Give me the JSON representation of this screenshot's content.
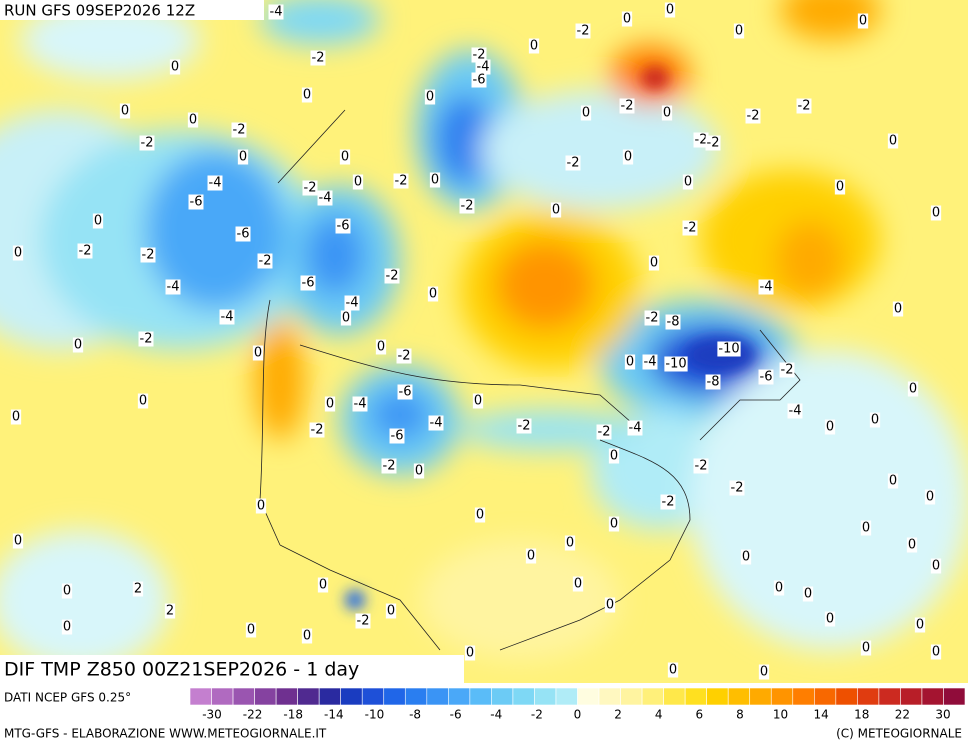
{
  "run_label": "RUN GFS 09SEP2026 12Z",
  "field_label": "DIF TMP Z850 00Z21SEP2026 - 1 day",
  "source_label": "DATI NCEP GFS 0.25°",
  "credit_left": "MTG-GFS - ELABORAZIONE WWW.METEOGIORNALE.IT",
  "credit_right": "(C) METEOGIORNALE",
  "colorbar": {
    "colors": [
      "#c47fcf",
      "#b06ac0",
      "#9a55b0",
      "#8542a0",
      "#6f3090",
      "#502a90",
      "#2a2aa0",
      "#1a3cc0",
      "#1e50d8",
      "#2066e8",
      "#2a7ef0",
      "#3a94f5",
      "#4aa8f8",
      "#5abcf8",
      "#6ccbf5",
      "#7ed8f5",
      "#96e3f5",
      "#b0ecf7",
      "#fffde0",
      "#fff8c0",
      "#fff4a0",
      "#fff07a",
      "#ffe84a",
      "#ffe020",
      "#ffd000",
      "#ffbe00",
      "#ffaa00",
      "#ff9400",
      "#ff7e00",
      "#f86800",
      "#ee5000",
      "#e03c10",
      "#cc2a20",
      "#b81e28",
      "#a41430",
      "#900c3a"
    ],
    "ticks": [
      -30,
      -22,
      -18,
      -14,
      -10,
      -8,
      -6,
      -4,
      -2,
      0,
      2,
      4,
      6,
      8,
      10,
      14,
      18,
      22,
      30
    ]
  },
  "contour_labels": [
    -4,
    -2,
    0,
    0,
    0,
    0,
    -2,
    -2,
    0,
    -4,
    -6,
    -6,
    0,
    -2,
    0,
    -2,
    -2,
    -4,
    -4,
    -2,
    0,
    0,
    -6,
    -4,
    -2,
    -6,
    0,
    0,
    -2,
    -4,
    0,
    0,
    0,
    -2,
    -6,
    -4,
    0,
    -4,
    -6,
    -2,
    -2,
    0,
    0,
    -2,
    -2,
    -4,
    -6,
    0,
    0,
    -2,
    -2,
    0,
    -2,
    0,
    0,
    0,
    0,
    0,
    -2,
    0,
    -2,
    -2,
    -2,
    -2,
    0,
    -2,
    0,
    0,
    0,
    0,
    -2,
    0,
    0,
    -2,
    -8,
    0,
    -4,
    -10,
    -10,
    -8,
    -6,
    -2,
    -4,
    0,
    -4,
    0,
    0,
    0,
    -2,
    -4,
    0,
    -2,
    -2,
    -2,
    0,
    0,
    0,
    0,
    0,
    0,
    0,
    0,
    0,
    0,
    2,
    2,
    0,
    0,
    0,
    0,
    0,
    0,
    -2,
    0,
    0,
    0,
    0,
    0,
    0,
    0,
    0,
    0,
    0,
    0,
    0,
    0,
    0,
    0
  ]
}
